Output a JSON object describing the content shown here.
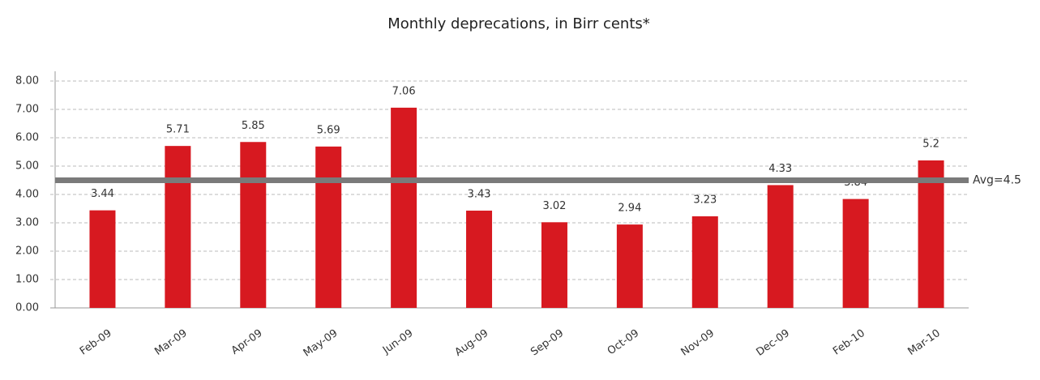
{
  "chart_data": {
    "type": "bar",
    "title": "Monthly deprecations, in Birr cents*",
    "categories": [
      "Feb-09",
      "Mar-09",
      "Apr-09",
      "May-09",
      "Jun-09",
      "Aug-09",
      "Sep-09",
      "Oct-09",
      "Nov-09",
      "Dec-09",
      "Feb-10",
      "Mar-10"
    ],
    "values": [
      3.44,
      5.71,
      5.85,
      5.69,
      7.06,
      3.43,
      3.02,
      2.94,
      3.23,
      4.33,
      3.84,
      5.2
    ],
    "color": "#d71920",
    "ylim": [
      0,
      8
    ],
    "yticks": [
      {
        "value": 0,
        "label": "0.00"
      },
      {
        "value": 1,
        "label": "1.00"
      },
      {
        "value": 2,
        "label": "2.00"
      },
      {
        "value": 3,
        "label": "3.00"
      },
      {
        "value": 4,
        "label": "4.00"
      },
      {
        "value": 5,
        "label": "5.00"
      },
      {
        "value": 6,
        "label": "6.00"
      },
      {
        "value": 7,
        "label": "7.00"
      },
      {
        "value": 8,
        "label": "8.00"
      }
    ],
    "grid": true,
    "avg": {
      "value": 4.5,
      "label": "Avg=4.5"
    }
  }
}
